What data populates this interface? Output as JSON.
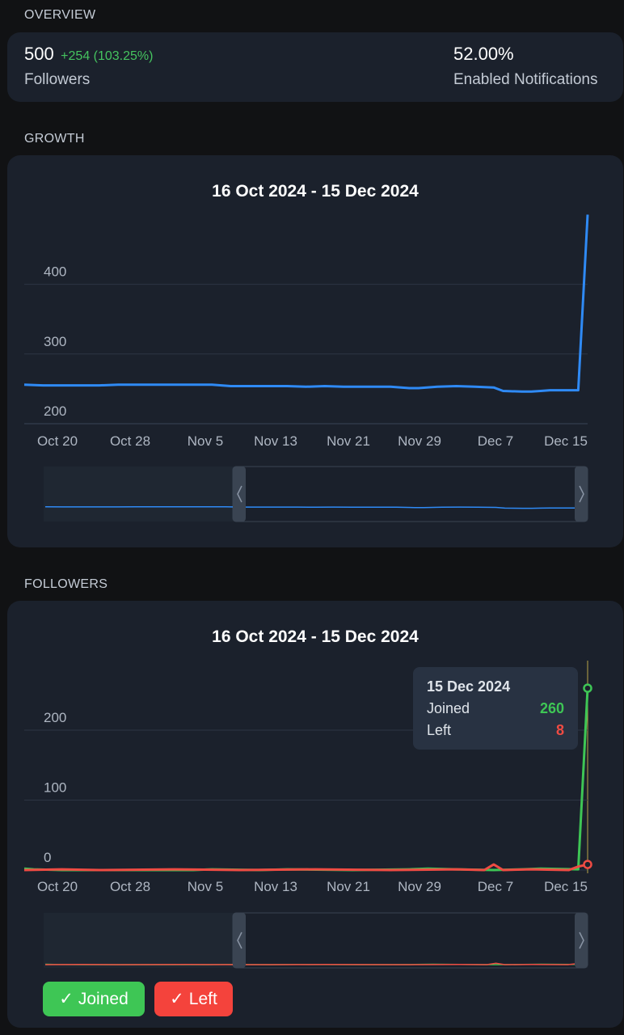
{
  "overview": {
    "section_title": "OVERVIEW",
    "followers": {
      "value": "500",
      "delta": "+254 (103.25%)",
      "label": "Followers"
    },
    "notifications": {
      "value": "52.00%",
      "label": "Enabled Notifications"
    }
  },
  "growth": {
    "section_title": "GROWTH",
    "chart_data": {
      "type": "line",
      "title": "16 Oct 2024 - 15 Dec 2024",
      "x_tick_labels": [
        "Oct 20",
        "Oct 28",
        "Nov 5",
        "Nov 13",
        "Nov 21",
        "Nov 29",
        "Dec 7",
        "Dec 15"
      ],
      "y_tick_labels": [
        "200",
        "300",
        "400"
      ],
      "ylim": [
        180,
        450
      ],
      "grid": true,
      "series": [
        {
          "color": "#2f8af5",
          "points": [
            [
              "2024-10-16",
              256
            ],
            [
              "2024-10-18",
              255
            ],
            [
              "2024-10-20",
              255
            ],
            [
              "2024-10-24",
              255
            ],
            [
              "2024-10-26",
              256
            ],
            [
              "2024-10-30",
              256
            ],
            [
              "2024-11-03",
              256
            ],
            [
              "2024-11-05",
              256
            ],
            [
              "2024-11-07",
              254
            ],
            [
              "2024-11-13",
              254
            ],
            [
              "2024-11-15",
              253
            ],
            [
              "2024-11-17",
              254
            ],
            [
              "2024-11-19",
              253
            ],
            [
              "2024-11-24",
              253
            ],
            [
              "2024-11-26",
              251
            ],
            [
              "2024-11-27",
              251
            ],
            [
              "2024-11-29",
              253
            ],
            [
              "2024-12-01",
              254
            ],
            [
              "2024-12-03",
              253
            ],
            [
              "2024-12-05",
              252
            ],
            [
              "2024-12-06",
              247
            ],
            [
              "2024-12-08",
              246
            ],
            [
              "2024-12-09",
              246
            ],
            [
              "2024-12-10",
              247
            ],
            [
              "2024-12-11",
              248
            ],
            [
              "2024-12-12",
              248
            ],
            [
              "2024-12-13",
              248
            ],
            [
              "2024-12-14",
              248
            ],
            [
              "2024-12-15",
              500
            ]
          ]
        }
      ]
    }
  },
  "followers_chart": {
    "section_title": "FOLLOWERS",
    "chart_data": {
      "type": "line",
      "title": "16 Oct 2024 - 15 Dec 2024",
      "x_tick_labels": [
        "Oct 20",
        "Oct 28",
        "Nov 5",
        "Nov 13",
        "Nov 21",
        "Nov 29",
        "Dec 7",
        "Dec 15"
      ],
      "y_tick_labels": [
        "0",
        "100",
        "200"
      ],
      "ylim": [
        -18,
        270
      ],
      "grid": true,
      "series": [
        {
          "name": "Joined",
          "color": "#3ec655",
          "points": [
            [
              "2024-10-16",
              2
            ],
            [
              "2024-10-17",
              1
            ],
            [
              "2024-10-20",
              0
            ],
            [
              "2024-10-25",
              0
            ],
            [
              "2024-11-03",
              0
            ],
            [
              "2024-11-05",
              1
            ],
            [
              "2024-11-10",
              0
            ],
            [
              "2024-11-13",
              1
            ],
            [
              "2024-11-20",
              0
            ],
            [
              "2024-11-26",
              1
            ],
            [
              "2024-11-28",
              2
            ],
            [
              "2024-12-01",
              1
            ],
            [
              "2024-12-05",
              0
            ],
            [
              "2024-12-08",
              1
            ],
            [
              "2024-12-10",
              2
            ],
            [
              "2024-12-14",
              1
            ],
            [
              "2024-12-15",
              260
            ]
          ]
        },
        {
          "name": "Left",
          "color": "#ef4b43",
          "points": [
            [
              "2024-10-16",
              0
            ],
            [
              "2024-10-20",
              1
            ],
            [
              "2024-10-24",
              0
            ],
            [
              "2024-11-01",
              1
            ],
            [
              "2024-11-08",
              0
            ],
            [
              "2024-11-16",
              1
            ],
            [
              "2024-11-24",
              0
            ],
            [
              "2024-12-01",
              1
            ],
            [
              "2024-12-04",
              0
            ],
            [
              "2024-12-05",
              8
            ],
            [
              "2024-12-06",
              0
            ],
            [
              "2024-12-09",
              1
            ],
            [
              "2024-12-13",
              0
            ],
            [
              "2024-12-14",
              5
            ],
            [
              "2024-12-15",
              8
            ]
          ]
        }
      ]
    },
    "tooltip": {
      "date": "15 Dec 2024",
      "rows": [
        {
          "label": "Joined",
          "value": "260",
          "color": "#3ec655"
        },
        {
          "label": "Left",
          "value": "8",
          "color": "#ef4b43"
        }
      ]
    },
    "legend": [
      {
        "check": "✓",
        "label": "Joined",
        "color": "#3ec655"
      },
      {
        "check": "✓",
        "label": "Left",
        "color": "#f4433c"
      }
    ]
  }
}
